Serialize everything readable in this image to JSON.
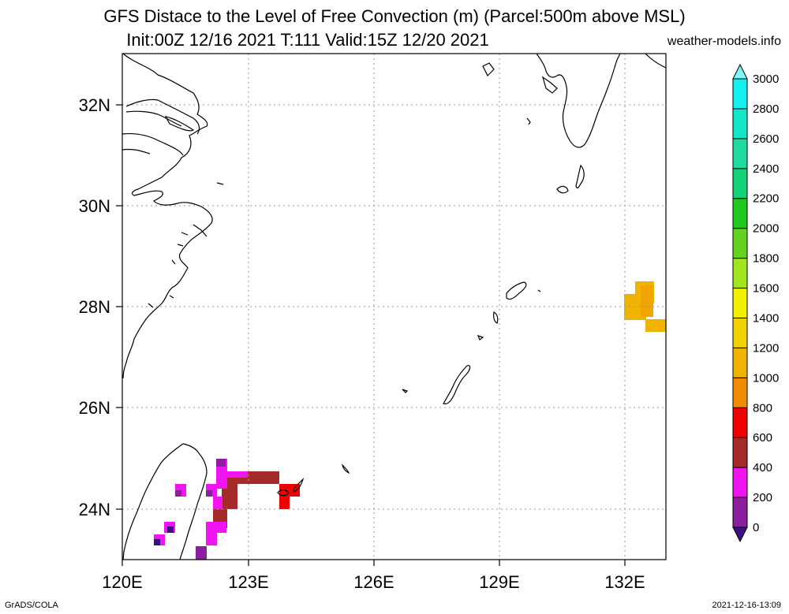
{
  "title_line1": "GFS Distace to the Level of Free Convection (m) (Parcel:500m above MSL)",
  "title_line2": "Init:00Z 12/16 2021 T:111 Valid:15Z 12/20 2021",
  "credit": "weather-models.info",
  "footer_left": "GrADS/COLA",
  "footer_right": "2021-12-16-13:09",
  "map": {
    "lon_labels": [
      "120E",
      "123E",
      "126E",
      "129E",
      "132E"
    ],
    "lat_labels": [
      "32N",
      "30N",
      "28N",
      "26N",
      "24N"
    ]
  },
  "colorbar": {
    "levels": [
      "0",
      "200",
      "400",
      "600",
      "800",
      "1000",
      "1200",
      "1400",
      "1600",
      "1800",
      "2000",
      "2200",
      "2400",
      "2600",
      "2800",
      "3000"
    ],
    "colors": [
      "#3c0f82",
      "#8c1ea0",
      "#f014f0",
      "#a52a2a",
      "#f00000",
      "#f08c00",
      "#f0b400",
      "#f0d200",
      "#f0f000",
      "#a0e61e",
      "#64d21e",
      "#1ec81e",
      "#14d278",
      "#1edca0",
      "#14e6c8",
      "#14f0f0",
      "#82f5f5"
    ]
  },
  "field_patches": [
    {
      "region": "east-china-sea-28N-132E",
      "color": "#f0b400"
    },
    {
      "region": "east-china-sea-28N-132E",
      "color": "#f08c00"
    },
    {
      "region": "taiwan-east",
      "color": "#a52a2a"
    },
    {
      "region": "taiwan-east",
      "color": "#f014f0"
    },
    {
      "region": "taiwan-east",
      "color": "#f00000"
    },
    {
      "region": "taiwan-east",
      "color": "#8c1ea0"
    }
  ]
}
